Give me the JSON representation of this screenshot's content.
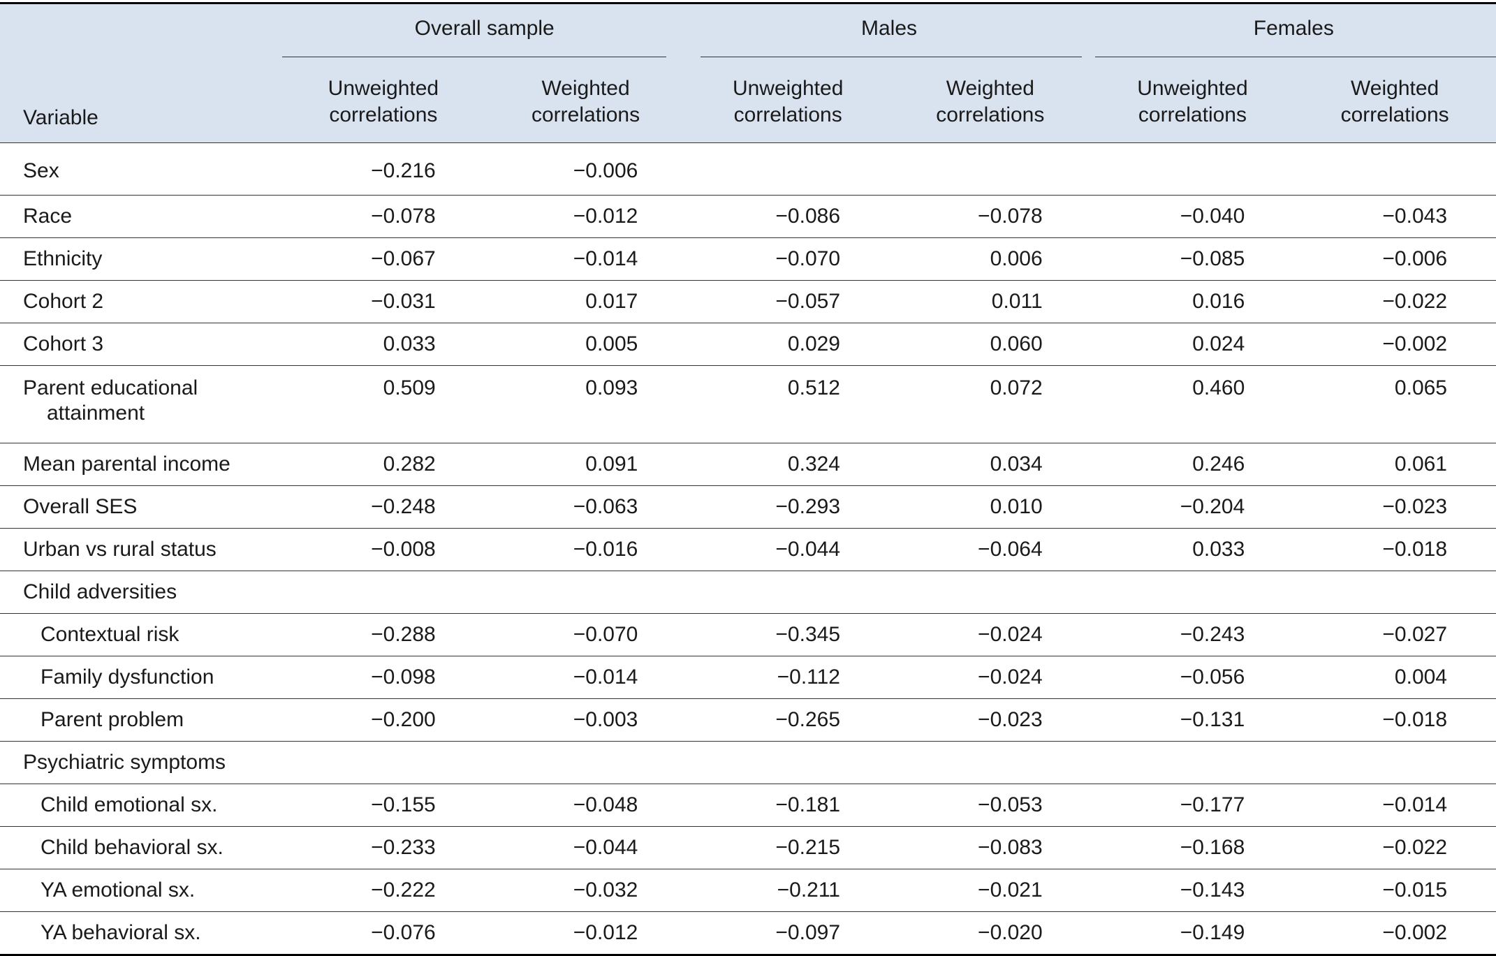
{
  "table": {
    "groups": [
      {
        "label": "Overall sample"
      },
      {
        "label": "Males"
      },
      {
        "label": "Females"
      }
    ],
    "variable_header": "Variable",
    "sub_headers": [
      [
        "Unweighted",
        "correlations"
      ],
      [
        "Weighted",
        "correlations"
      ],
      [
        "Unweighted",
        "correlations"
      ],
      [
        "Weighted",
        "correlations"
      ],
      [
        "Unweighted",
        "correlations"
      ],
      [
        "Weighted",
        "correlations"
      ]
    ],
    "rows": [
      {
        "label": "Sex",
        "values": [
          "−0.216",
          "−0.006",
          "",
          "",
          "",
          ""
        ]
      },
      {
        "label": "Race",
        "values": [
          "−0.078",
          "−0.012",
          "−0.086",
          "−0.078",
          "−0.040",
          "−0.043"
        ]
      },
      {
        "label": "Ethnicity",
        "values": [
          "−0.067",
          "−0.014",
          "−0.070",
          "0.006",
          "−0.085",
          "−0.006"
        ]
      },
      {
        "label": "Cohort 2",
        "values": [
          "−0.031",
          "0.017",
          "−0.057",
          "0.011",
          "0.016",
          "−0.022"
        ]
      },
      {
        "label": "Cohort 3",
        "values": [
          "0.033",
          "0.005",
          "0.029",
          "0.060",
          "0.024",
          "−0.002"
        ]
      },
      {
        "label": "Parent educational",
        "label_cont": "attainment",
        "values": [
          "0.509",
          "0.093",
          "0.512",
          "0.072",
          "0.460",
          "0.065"
        ]
      },
      {
        "label": "Mean parental income",
        "values": [
          "0.282",
          "0.091",
          "0.324",
          "0.034",
          "0.246",
          "0.061"
        ]
      },
      {
        "label": "Overall SES",
        "values": [
          "−0.248",
          "−0.063",
          "−0.293",
          "0.010",
          "−0.204",
          "−0.023"
        ]
      },
      {
        "label": "Urban vs rural status",
        "values": [
          "−0.008",
          "−0.016",
          "−0.044",
          "−0.064",
          "0.033",
          "−0.018"
        ]
      },
      {
        "label": "Child adversities",
        "section": true,
        "values": [
          "",
          "",
          "",
          "",
          "",
          ""
        ]
      },
      {
        "label": "Contextual risk",
        "indent": true,
        "values": [
          "−0.288",
          "−0.070",
          "−0.345",
          "−0.024",
          "−0.243",
          "−0.027"
        ]
      },
      {
        "label": "Family dysfunction",
        "indent": true,
        "values": [
          "−0.098",
          "−0.014",
          "−0.112",
          "−0.024",
          "−0.056",
          "0.004"
        ]
      },
      {
        "label": "Parent problem",
        "indent": true,
        "values": [
          "−0.200",
          "−0.003",
          "−0.265",
          "−0.023",
          "−0.131",
          "−0.018"
        ]
      },
      {
        "label": "Psychiatric symptoms",
        "section": true,
        "values": [
          "",
          "",
          "",
          "",
          "",
          ""
        ]
      },
      {
        "label": "Child emotional sx.",
        "indent": true,
        "values": [
          "−0.155",
          "−0.048",
          "−0.181",
          "−0.053",
          "−0.177",
          "−0.014"
        ]
      },
      {
        "label": "Child behavioral sx.",
        "indent": true,
        "values": [
          "−0.233",
          "−0.044",
          "−0.215",
          "−0.083",
          "−0.168",
          "−0.022"
        ]
      },
      {
        "label": "YA emotional sx.",
        "indent": true,
        "values": [
          "−0.222",
          "−0.032",
          "−0.211",
          "−0.021",
          "−0.143",
          "−0.015"
        ]
      },
      {
        "label": "YA behavioral sx.",
        "indent": true,
        "values": [
          "−0.076",
          "−0.012",
          "−0.097",
          "−0.020",
          "−0.149",
          "−0.002"
        ]
      }
    ]
  }
}
